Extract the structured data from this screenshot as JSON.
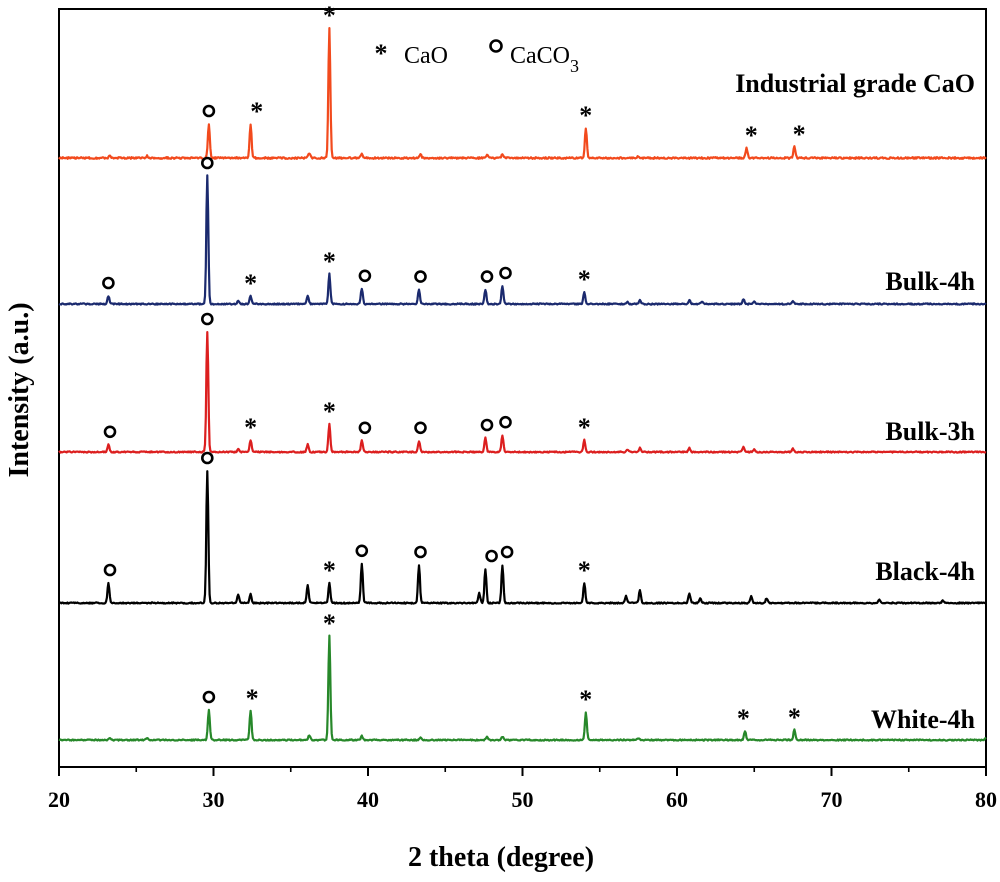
{
  "chart_data": {
    "type": "line",
    "xlabel": "2 theta (degree)",
    "ylabel": "Intensity (a.u.)",
    "xlim": [
      20,
      80
    ],
    "xticks": [
      "20",
      "30",
      "40",
      "50",
      "60",
      "70",
      "80"
    ],
    "yticks": [],
    "legend": [
      {
        "symbol": "*",
        "marker": "star",
        "label": "CaO"
      },
      {
        "symbol": "o",
        "marker": "circle",
        "label": "CaCO",
        "subscript": "3"
      }
    ],
    "series": [
      {
        "name": "Industrial grade CaO",
        "color": "#f24a1d",
        "baseline": 0.0,
        "noise": 0.02,
        "peaks": [
          [
            23.3,
            0.06
          ],
          [
            25.7,
            0.05
          ],
          [
            29.7,
            0.85
          ],
          [
            32.4,
            0.85
          ],
          [
            36.2,
            0.12
          ],
          [
            37.5,
            3.25
          ],
          [
            39.6,
            0.1
          ],
          [
            43.4,
            0.08
          ],
          [
            47.7,
            0.08
          ],
          [
            48.7,
            0.08
          ],
          [
            54.1,
            0.75
          ],
          [
            57.5,
            0.04
          ],
          [
            64.5,
            0.25
          ],
          [
            67.6,
            0.28
          ]
        ],
        "markers": [
          [
            29.7,
            "circle"
          ],
          [
            32.8,
            "star"
          ],
          [
            37.5,
            "star"
          ],
          [
            54.1,
            "star"
          ],
          [
            64.8,
            "star"
          ],
          [
            67.9,
            "star"
          ]
        ]
      },
      {
        "name": "Bulk-4h",
        "color": "#1b2a6e",
        "baseline": 0.0,
        "noise": 0.015,
        "peaks": [
          [
            23.2,
            0.2
          ],
          [
            29.6,
            3.2
          ],
          [
            31.6,
            0.08
          ],
          [
            32.4,
            0.2
          ],
          [
            36.1,
            0.2
          ],
          [
            37.5,
            0.75
          ],
          [
            39.6,
            0.38
          ],
          [
            43.3,
            0.36
          ],
          [
            47.6,
            0.36
          ],
          [
            48.7,
            0.45
          ],
          [
            54.0,
            0.3
          ],
          [
            56.8,
            0.06
          ],
          [
            57.6,
            0.1
          ],
          [
            60.8,
            0.1
          ],
          [
            61.6,
            0.06
          ],
          [
            64.3,
            0.12
          ],
          [
            65.0,
            0.06
          ],
          [
            67.5,
            0.08
          ]
        ],
        "markers": [
          [
            23.2,
            "circle"
          ],
          [
            29.6,
            "circle"
          ],
          [
            32.4,
            "star"
          ],
          [
            37.5,
            "star"
          ],
          [
            39.8,
            "circle"
          ],
          [
            43.4,
            "circle"
          ],
          [
            47.7,
            "circle"
          ],
          [
            48.9,
            "circle"
          ],
          [
            54.0,
            "star"
          ]
        ]
      },
      {
        "name": "Bulk-3h",
        "color": "#dc1f1f",
        "baseline": 0.0,
        "noise": 0.015,
        "peaks": [
          [
            23.2,
            0.18
          ],
          [
            29.6,
            3.0
          ],
          [
            31.6,
            0.08
          ],
          [
            32.4,
            0.3
          ],
          [
            36.1,
            0.2
          ],
          [
            37.5,
            0.7
          ],
          [
            39.6,
            0.28
          ],
          [
            43.3,
            0.28
          ],
          [
            47.6,
            0.35
          ],
          [
            48.7,
            0.42
          ],
          [
            54.0,
            0.3
          ],
          [
            56.8,
            0.06
          ],
          [
            57.6,
            0.1
          ],
          [
            60.8,
            0.1
          ],
          [
            64.3,
            0.12
          ],
          [
            65.0,
            0.06
          ],
          [
            67.5,
            0.08
          ]
        ],
        "markers": [
          [
            23.3,
            "circle"
          ],
          [
            29.6,
            "circle"
          ],
          [
            32.4,
            "star"
          ],
          [
            37.5,
            "star"
          ],
          [
            39.8,
            "circle"
          ],
          [
            43.4,
            "circle"
          ],
          [
            47.7,
            "circle"
          ],
          [
            48.9,
            "circle"
          ],
          [
            54.0,
            "star"
          ]
        ]
      },
      {
        "name": "Black-4h",
        "color": "#000000",
        "baseline": 0.0,
        "noise": 0.015,
        "peaks": [
          [
            23.2,
            0.5
          ],
          [
            29.6,
            3.3
          ],
          [
            31.6,
            0.2
          ],
          [
            32.4,
            0.22
          ],
          [
            36.1,
            0.45
          ],
          [
            37.5,
            0.5
          ],
          [
            39.6,
            0.98
          ],
          [
            43.3,
            0.95
          ],
          [
            47.2,
            0.25
          ],
          [
            47.6,
            0.85
          ],
          [
            48.7,
            0.95
          ],
          [
            54.0,
            0.5
          ],
          [
            56.7,
            0.18
          ],
          [
            57.6,
            0.32
          ],
          [
            60.8,
            0.25
          ],
          [
            61.5,
            0.12
          ],
          [
            64.8,
            0.16
          ],
          [
            65.8,
            0.12
          ],
          [
            73.1,
            0.08
          ],
          [
            77.2,
            0.06
          ]
        ],
        "markers": [
          [
            23.3,
            "circle"
          ],
          [
            29.6,
            "circle"
          ],
          [
            37.5,
            "star"
          ],
          [
            39.6,
            "circle"
          ],
          [
            43.4,
            "circle"
          ],
          [
            48.0,
            "circle"
          ],
          [
            49.0,
            "circle"
          ],
          [
            54.0,
            "star"
          ]
        ]
      },
      {
        "name": "White-4h",
        "color": "#27882a",
        "baseline": 0.0,
        "noise": 0.015,
        "peaks": [
          [
            23.3,
            0.06
          ],
          [
            25.7,
            0.05
          ],
          [
            29.7,
            0.75
          ],
          [
            32.4,
            0.72
          ],
          [
            36.2,
            0.12
          ],
          [
            37.5,
            2.6
          ],
          [
            39.6,
            0.1
          ],
          [
            43.4,
            0.07
          ],
          [
            47.7,
            0.08
          ],
          [
            48.7,
            0.08
          ],
          [
            54.1,
            0.7
          ],
          [
            57.5,
            0.04
          ],
          [
            64.4,
            0.22
          ],
          [
            67.6,
            0.25
          ],
          [
            80.0,
            0.05
          ]
        ],
        "markers": [
          [
            29.7,
            "circle"
          ],
          [
            32.5,
            "star"
          ],
          [
            37.5,
            "star"
          ],
          [
            54.1,
            "star"
          ],
          [
            64.3,
            "star"
          ],
          [
            67.6,
            "star"
          ]
        ]
      }
    ]
  }
}
